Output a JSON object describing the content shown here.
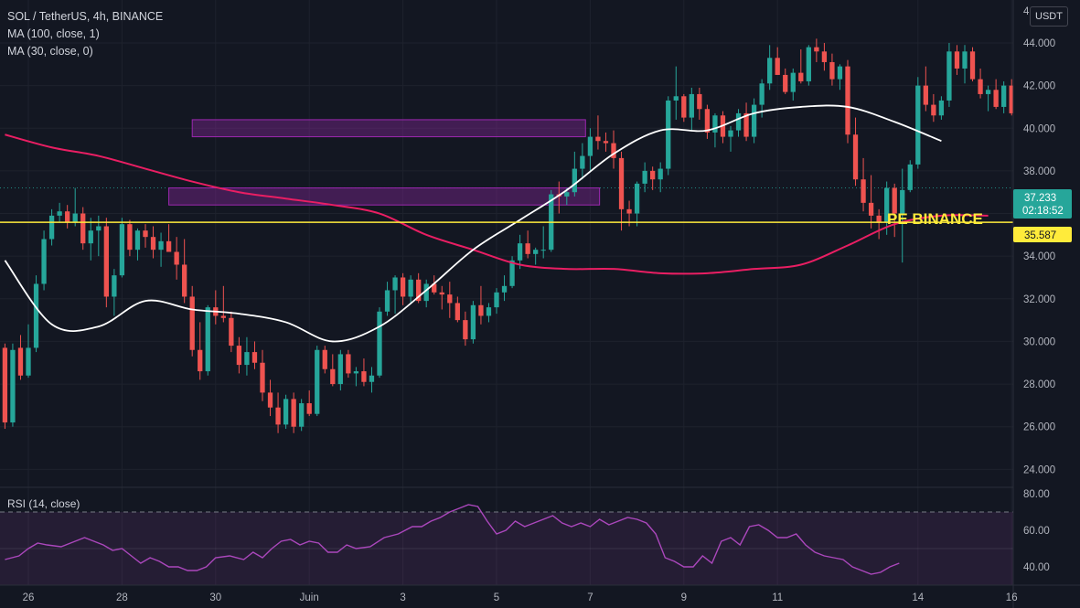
{
  "header": {
    "symbol_line": "SOL / TetherUS, 4h, BINANCE",
    "ma100_label": "MA (100, close, 1)",
    "ma30_label": "MA (30, close, 0)",
    "currency": "USDT",
    "rsi_label": "RSI (14, close)"
  },
  "colors": {
    "background": "#131722",
    "up": "#26a69a",
    "down": "#ef5350",
    "ma100": "#e91e63",
    "ma30": "#ffffff",
    "level": "#ffeb3b",
    "zone": "#9c27b0",
    "rsi": "#ab47bc"
  },
  "price_tag": {
    "price": "37.233",
    "countdown": "02:18:52"
  },
  "level_tag": {
    "price": "35.587",
    "note": "PE BINANCE"
  },
  "chart_data": {
    "type": "candlestick",
    "title": "SOL / TetherUS, 4h, BINANCE",
    "x_axis": {
      "ticks": [
        "26",
        "28",
        "30",
        "Juin",
        "3",
        "5",
        "7",
        "9",
        "11",
        "14",
        "16"
      ]
    },
    "y_axis": {
      "range": [
        23.5,
        45.5
      ],
      "ticks": [
        "24.000",
        "26.000",
        "28.000",
        "30.000",
        "32.000",
        "34.000",
        "36.000",
        "38.000",
        "40.000",
        "42.000",
        "44.000"
      ]
    },
    "candles_per_day": 6,
    "first_candle_day_offset": -0.5,
    "candles": [
      [
        29.7,
        29.9,
        25.9,
        26.2
      ],
      [
        26.2,
        29.9,
        26.0,
        29.6
      ],
      [
        29.7,
        30.3,
        28.2,
        28.4
      ],
      [
        28.4,
        30.8,
        28.3,
        29.7
      ],
      [
        29.7,
        33.1,
        29.5,
        32.7
      ],
      [
        32.7,
        35.2,
        32.4,
        34.8
      ],
      [
        34.8,
        36.2,
        34.5,
        35.9
      ],
      [
        35.9,
        36.5,
        35.6,
        36.1
      ],
      [
        36.1,
        36.4,
        35.3,
        35.6
      ],
      [
        35.6,
        37.2,
        35.4,
        36.0
      ],
      [
        36.0,
        36.3,
        34.3,
        34.6
      ],
      [
        34.6,
        35.8,
        33.8,
        35.2
      ],
      [
        35.2,
        35.9,
        34.0,
        35.4
      ],
      [
        35.4,
        35.8,
        31.6,
        32.1
      ],
      [
        32.1,
        33.4,
        31.2,
        33.1
      ],
      [
        33.1,
        35.8,
        33.0,
        35.5
      ],
      [
        35.5,
        35.7,
        34.0,
        34.3
      ],
      [
        34.3,
        35.3,
        33.8,
        35.2
      ],
      [
        35.2,
        35.5,
        34.4,
        34.9
      ],
      [
        34.9,
        35.4,
        33.9,
        34.3
      ],
      [
        34.3,
        35.1,
        33.5,
        34.7
      ],
      [
        34.7,
        35.5,
        34.2,
        34.2
      ],
      [
        34.2,
        34.9,
        32.9,
        33.6
      ],
      [
        33.6,
        34.8,
        31.8,
        32.1
      ],
      [
        32.1,
        32.6,
        29.3,
        29.6
      ],
      [
        29.6,
        30.9,
        28.2,
        28.6
      ],
      [
        28.6,
        31.7,
        28.4,
        31.6
      ],
      [
        31.6,
        32.4,
        30.8,
        31.2
      ],
      [
        31.2,
        32.6,
        30.9,
        31.1
      ],
      [
        31.1,
        31.4,
        29.5,
        29.8
      ],
      [
        29.8,
        30.2,
        28.5,
        28.9
      ],
      [
        28.9,
        30.2,
        28.4,
        29.5
      ],
      [
        29.5,
        30.0,
        28.7,
        29.0
      ],
      [
        29.0,
        29.6,
        27.2,
        27.6
      ],
      [
        27.6,
        28.2,
        26.5,
        26.9
      ],
      [
        26.9,
        27.6,
        25.7,
        26.1
      ],
      [
        26.1,
        27.5,
        25.9,
        27.3
      ],
      [
        27.3,
        27.6,
        25.7,
        26.0
      ],
      [
        26.0,
        27.3,
        25.8,
        27.1
      ],
      [
        27.1,
        27.7,
        26.5,
        26.6
      ],
      [
        26.6,
        29.8,
        26.5,
        29.6
      ],
      [
        29.6,
        29.8,
        28.5,
        28.7
      ],
      [
        28.7,
        29.4,
        27.9,
        28.0
      ],
      [
        28.0,
        29.6,
        27.7,
        29.4
      ],
      [
        29.4,
        29.6,
        28.3,
        28.5
      ],
      [
        28.5,
        28.8,
        27.9,
        28.6
      ],
      [
        28.6,
        29.2,
        27.9,
        28.1
      ],
      [
        28.1,
        28.8,
        27.6,
        28.4
      ],
      [
        28.4,
        31.6,
        28.3,
        31.4
      ],
      [
        31.4,
        32.8,
        31.2,
        32.4
      ],
      [
        32.4,
        33.1,
        31.3,
        33.0
      ],
      [
        33.0,
        33.2,
        31.7,
        32.1
      ],
      [
        32.1,
        33.1,
        31.8,
        32.9
      ],
      [
        32.9,
        33.2,
        31.8,
        31.9
      ],
      [
        31.9,
        32.9,
        31.6,
        32.7
      ],
      [
        32.7,
        33.1,
        32.2,
        32.3
      ],
      [
        32.3,
        32.6,
        31.5,
        32.2
      ],
      [
        32.2,
        32.8,
        31.1,
        31.8
      ],
      [
        31.8,
        32.1,
        30.9,
        31.0
      ],
      [
        31.0,
        31.4,
        29.8,
        30.1
      ],
      [
        30.1,
        31.9,
        29.9,
        31.7
      ],
      [
        31.7,
        32.6,
        30.8,
        31.2
      ],
      [
        31.2,
        31.8,
        30.9,
        31.6
      ],
      [
        31.6,
        32.5,
        31.3,
        32.3
      ],
      [
        32.3,
        33.1,
        31.9,
        32.6
      ],
      [
        32.6,
        34.0,
        32.5,
        33.8
      ],
      [
        33.8,
        35.0,
        33.4,
        34.6
      ],
      [
        34.6,
        35.2,
        33.9,
        34.1
      ],
      [
        34.1,
        34.4,
        33.6,
        34.3
      ],
      [
        34.3,
        35.4,
        33.9,
        34.3
      ],
      [
        34.3,
        37.1,
        34.2,
        36.9
      ],
      [
        36.9,
        37.5,
        36.0,
        36.8
      ],
      [
        36.8,
        37.2,
        36.4,
        37.0
      ],
      [
        37.0,
        38.9,
        36.8,
        38.1
      ],
      [
        38.1,
        39.3,
        37.6,
        38.7
      ],
      [
        38.7,
        40.0,
        38.0,
        39.6
      ],
      [
        39.6,
        40.6,
        39.0,
        39.4
      ],
      [
        39.4,
        39.8,
        38.9,
        39.3
      ],
      [
        39.3,
        39.9,
        38.1,
        38.6
      ],
      [
        38.6,
        38.9,
        35.2,
        36.2
      ],
      [
        36.2,
        36.6,
        35.4,
        36.0
      ],
      [
        36.0,
        37.5,
        35.4,
        37.4
      ],
      [
        37.4,
        38.4,
        37.0,
        38.0
      ],
      [
        38.0,
        38.2,
        37.1,
        37.6
      ],
      [
        37.6,
        38.4,
        37.0,
        38.1
      ],
      [
        38.1,
        41.5,
        37.8,
        41.3
      ],
      [
        41.3,
        42.9,
        40.4,
        41.5
      ],
      [
        41.5,
        41.6,
        40.3,
        40.5
      ],
      [
        40.5,
        41.9,
        39.9,
        41.6
      ],
      [
        41.6,
        41.9,
        40.4,
        40.9
      ],
      [
        40.9,
        41.1,
        39.5,
        39.8
      ],
      [
        39.8,
        40.7,
        39.1,
        40.6
      ],
      [
        40.6,
        40.8,
        39.3,
        39.6
      ],
      [
        39.6,
        40.1,
        38.9,
        39.9
      ],
      [
        39.9,
        40.9,
        39.6,
        40.7
      ],
      [
        40.7,
        41.2,
        39.4,
        39.6
      ],
      [
        39.6,
        41.4,
        39.3,
        41.1
      ],
      [
        41.1,
        42.3,
        40.5,
        42.1
      ],
      [
        42.1,
        43.9,
        41.8,
        43.3
      ],
      [
        43.3,
        43.8,
        42.5,
        42.5
      ],
      [
        42.5,
        42.8,
        41.6,
        41.7
      ],
      [
        41.7,
        42.8,
        41.3,
        42.6
      ],
      [
        42.6,
        43.7,
        42.1,
        42.2
      ],
      [
        42.2,
        43.9,
        42.0,
        43.8
      ],
      [
        43.8,
        44.2,
        43.1,
        43.6
      ],
      [
        43.6,
        44.0,
        42.7,
        43.1
      ],
      [
        43.1,
        43.5,
        42.0,
        42.3
      ],
      [
        42.3,
        43.0,
        41.8,
        42.9
      ],
      [
        42.9,
        43.2,
        39.3,
        39.7
      ],
      [
        39.7,
        40.5,
        37.3,
        37.6
      ],
      [
        37.6,
        38.6,
        36.1,
        36.5
      ],
      [
        36.5,
        37.8,
        35.3,
        35.9
      ],
      [
        35.9,
        36.2,
        34.8,
        35.6
      ],
      [
        35.6,
        37.5,
        35.0,
        37.2
      ],
      [
        37.2,
        37.4,
        34.9,
        36.0
      ],
      [
        36.0,
        38.1,
        33.7,
        37.1
      ],
      [
        37.1,
        38.5,
        37.0,
        38.3
      ],
      [
        38.3,
        42.4,
        38.1,
        42.0
      ],
      [
        42.0,
        42.9,
        40.8,
        41.1
      ],
      [
        41.1,
        41.6,
        40.3,
        40.6
      ],
      [
        40.6,
        41.5,
        40.4,
        41.3
      ],
      [
        41.3,
        44.0,
        41.0,
        43.6
      ],
      [
        43.6,
        43.9,
        42.5,
        42.8
      ],
      [
        42.8,
        43.9,
        42.1,
        43.6
      ],
      [
        43.6,
        43.8,
        42.2,
        42.3
      ],
      [
        42.3,
        42.8,
        41.4,
        41.6
      ],
      [
        41.6,
        42.0,
        40.8,
        41.8
      ],
      [
        41.8,
        42.3,
        40.9,
        41.0
      ],
      [
        41.0,
        42.2,
        40.7,
        42.0
      ],
      [
        42.0,
        42.3,
        40.6,
        40.7
      ],
      [
        40.7,
        41.7,
        40.2,
        41.6
      ],
      [
        41.6,
        42.6,
        41.1,
        41.2
      ],
      [
        41.2,
        41.6,
        40.5,
        41.0
      ],
      [
        41.0,
        41.8,
        40.6,
        41.3
      ],
      [
        41.3,
        41.5,
        40.5,
        41.0
      ],
      [
        41.0,
        41.4,
        39.7,
        39.9
      ],
      [
        39.9,
        41.4,
        39.8,
        41.0
      ],
      [
        41.0,
        41.2,
        39.6,
        39.8
      ],
      [
        39.8,
        40.3,
        38.8,
        39.0
      ],
      [
        39.0,
        39.5,
        38.3,
        38.6
      ],
      [
        38.6,
        39.4,
        38.3,
        39.3
      ],
      [
        39.3,
        39.5,
        37.5,
        37.8
      ],
      [
        37.8,
        37.9,
        36.9,
        37.0
      ],
      [
        37.0,
        37.1,
        35.7,
        36.2
      ],
      [
        36.2,
        36.4,
        35.2,
        35.3
      ],
      [
        35.3,
        36.2,
        34.2,
        35.9
      ],
      [
        35.9,
        36.4,
        35.4,
        35.7
      ],
      [
        35.7,
        36.7,
        35.0,
        36.4
      ],
      [
        36.4,
        37.0,
        35.9,
        36.7
      ],
      [
        36.7,
        37.3,
        36.4,
        37.2
      ]
    ],
    "ma100": [
      [
        -0.5,
        39.7
      ],
      [
        0.5,
        39.1
      ],
      [
        1.5,
        38.7
      ],
      [
        2.5,
        38.1
      ],
      [
        3.5,
        37.5
      ],
      [
        4.5,
        37.0
      ],
      [
        5.5,
        36.7
      ],
      [
        6.5,
        36.4
      ],
      [
        7.5,
        36.0
      ],
      [
        8.5,
        35.0
      ],
      [
        9.5,
        34.3
      ],
      [
        10.5,
        33.6
      ],
      [
        11.5,
        33.4
      ],
      [
        12.5,
        33.4
      ],
      [
        13.5,
        33.2
      ],
      [
        14.5,
        33.2
      ],
      [
        15.5,
        33.4
      ],
      [
        16.5,
        33.6
      ],
      [
        17.5,
        34.5
      ],
      [
        18.5,
        35.5
      ],
      [
        19.5,
        35.9
      ],
      [
        20.5,
        35.9
      ]
    ],
    "ma30": [
      [
        -0.5,
        33.8
      ],
      [
        0.5,
        30.8
      ],
      [
        1.5,
        30.7
      ],
      [
        2.5,
        31.9
      ],
      [
        3.5,
        31.5
      ],
      [
        4.5,
        31.3
      ],
      [
        5.5,
        30.9
      ],
      [
        6.5,
        30.0
      ],
      [
        7.5,
        30.7
      ],
      [
        8.5,
        32.4
      ],
      [
        9.5,
        34.3
      ],
      [
        10.5,
        35.7
      ],
      [
        11.5,
        37.1
      ],
      [
        12.5,
        38.8
      ],
      [
        13.5,
        39.9
      ],
      [
        14.5,
        39.9
      ],
      [
        15.5,
        40.7
      ],
      [
        16.5,
        41.0
      ],
      [
        17.5,
        41.0
      ],
      [
        18.5,
        40.3
      ],
      [
        19.5,
        39.4
      ]
    ],
    "zones": [
      {
        "x0": 3.5,
        "x1": 11.9,
        "y0": 39.6,
        "y1": 40.4
      },
      {
        "x0": 3.0,
        "x1": 12.2,
        "y0": 36.4,
        "y1": 37.2
      }
    ],
    "horizontal_level": 35.587,
    "rsi": {
      "range": [
        30,
        82
      ],
      "ticks": [
        "80.00",
        "60.00",
        "40.00"
      ],
      "bands": [
        30,
        70
      ],
      "points": [
        [
          -0.5,
          44
        ],
        [
          -0.2,
          46
        ],
        [
          0.0,
          50
        ],
        [
          0.2,
          53
        ],
        [
          0.4,
          52
        ],
        [
          0.7,
          51
        ],
        [
          1.0,
          54
        ],
        [
          1.2,
          56
        ],
        [
          1.4,
          54
        ],
        [
          1.6,
          52
        ],
        [
          1.8,
          49
        ],
        [
          2.0,
          50
        ],
        [
          2.2,
          46
        ],
        [
          2.4,
          42
        ],
        [
          2.6,
          45
        ],
        [
          2.8,
          43
        ],
        [
          3.0,
          40
        ],
        [
          3.2,
          40
        ],
        [
          3.4,
          38
        ],
        [
          3.6,
          38
        ],
        [
          3.8,
          40
        ],
        [
          4.0,
          45
        ],
        [
          4.3,
          46
        ],
        [
          4.6,
          44
        ],
        [
          4.8,
          48
        ],
        [
          5.0,
          45
        ],
        [
          5.2,
          50
        ],
        [
          5.4,
          54
        ],
        [
          5.6,
          55
        ],
        [
          5.8,
          52
        ],
        [
          6.0,
          54
        ],
        [
          6.2,
          53
        ],
        [
          6.4,
          48
        ],
        [
          6.6,
          48
        ],
        [
          6.8,
          52
        ],
        [
          7.0,
          50
        ],
        [
          7.3,
          51
        ],
        [
          7.6,
          56
        ],
        [
          7.9,
          58
        ],
        [
          8.2,
          62
        ],
        [
          8.4,
          62
        ],
        [
          8.6,
          65
        ],
        [
          8.8,
          67
        ],
        [
          9.0,
          70
        ],
        [
          9.2,
          72
        ],
        [
          9.4,
          74
        ],
        [
          9.6,
          73
        ],
        [
          9.8,
          65
        ],
        [
          10.0,
          58
        ],
        [
          10.2,
          60
        ],
        [
          10.4,
          65
        ],
        [
          10.6,
          62
        ],
        [
          10.8,
          64
        ],
        [
          11.0,
          66
        ],
        [
          11.2,
          68
        ],
        [
          11.4,
          64
        ],
        [
          11.6,
          62
        ],
        [
          11.8,
          64
        ],
        [
          12.0,
          62
        ],
        [
          12.2,
          66
        ],
        [
          12.4,
          63
        ],
        [
          12.6,
          65
        ],
        [
          12.8,
          67
        ],
        [
          13.0,
          66
        ],
        [
          13.2,
          64
        ],
        [
          13.4,
          58
        ],
        [
          13.6,
          45
        ],
        [
          13.8,
          43
        ],
        [
          14.0,
          40
        ],
        [
          14.2,
          40
        ],
        [
          14.4,
          46
        ],
        [
          14.6,
          42
        ],
        [
          14.8,
          54
        ],
        [
          15.0,
          56
        ],
        [
          15.2,
          52
        ],
        [
          15.4,
          62
        ],
        [
          15.6,
          63
        ],
        [
          15.8,
          60
        ],
        [
          16.0,
          56
        ],
        [
          16.2,
          56
        ],
        [
          16.4,
          58
        ],
        [
          16.6,
          52
        ],
        [
          16.8,
          48
        ],
        [
          17.0,
          46
        ],
        [
          17.2,
          45
        ],
        [
          17.4,
          44
        ],
        [
          17.6,
          40
        ],
        [
          17.8,
          38
        ],
        [
          18.0,
          36
        ],
        [
          18.2,
          37
        ],
        [
          18.4,
          40
        ],
        [
          18.6,
          42
        ]
      ]
    }
  }
}
